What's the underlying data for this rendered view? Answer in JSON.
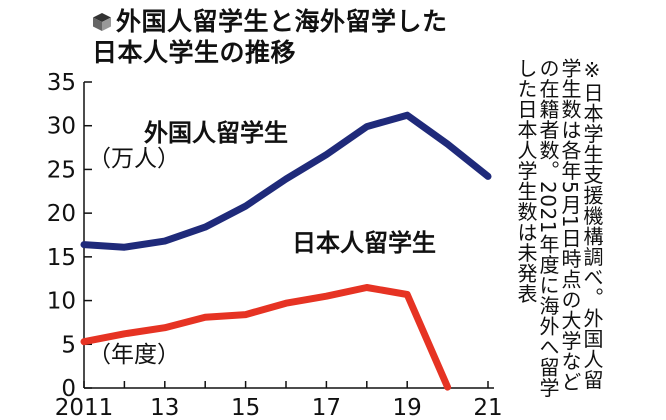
{
  "title": {
    "line1": "外国人留学生と海外留学した",
    "line2": "日本人学生の推移"
  },
  "note": "※日本学生支援機構調べ。外国人留学生数は各年5月1日時点の大学などの在籍者数。2021年度に海外へ留学した日本人学生数は未発表",
  "chart_data": {
    "type": "line",
    "title": "外国人留学生と海外留学した日本人学生の推移",
    "ylabel": "（万人）",
    "xlabel": "（年度）",
    "ylim": [
      0,
      35
    ],
    "xlim": [
      2011,
      2021
    ],
    "y_ticks": [
      0,
      5,
      10,
      15,
      20,
      25,
      30,
      35
    ],
    "x_tick_values": [
      2011,
      2013,
      2015,
      2017,
      2019,
      2021
    ],
    "x_tick_labels": [
      "2011",
      "13",
      "15",
      "17",
      "19",
      "21"
    ],
    "grid": false,
    "series": [
      {
        "name": "外国人留学生",
        "color": "#1f2a7a",
        "x": [
          2011,
          2012,
          2013,
          2014,
          2015,
          2016,
          2017,
          2018,
          2019,
          2020,
          2021
        ],
        "values": [
          16.4,
          16.1,
          16.8,
          18.4,
          20.8,
          23.9,
          26.7,
          29.9,
          31.2,
          27.9,
          24.2
        ]
      },
      {
        "name": "日本人留学生",
        "color": "#e63323",
        "x": [
          2011,
          2012,
          2013,
          2014,
          2015,
          2016,
          2017,
          2018,
          2019,
          2020
        ],
        "values": [
          5.3,
          6.2,
          6.9,
          8.1,
          8.4,
          9.7,
          10.5,
          11.5,
          10.7,
          0.1
        ]
      }
    ]
  }
}
